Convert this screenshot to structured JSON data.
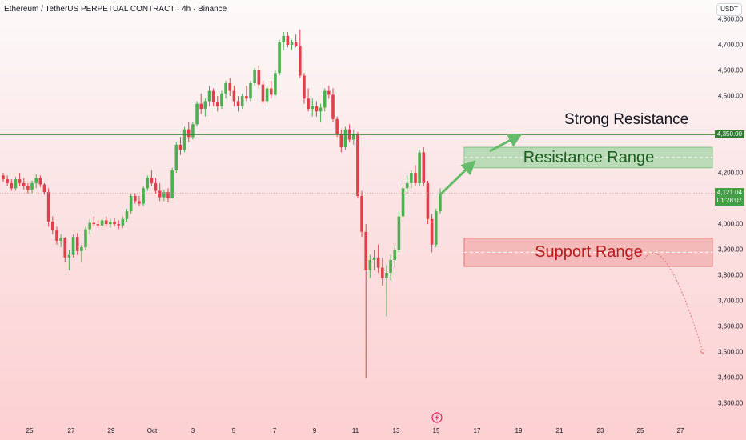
{
  "header": {
    "symbol_title": "Ethereum / TetherUS PERPETUAL CONTRACT · 4h · Binance",
    "currency_button": "USDT"
  },
  "price_tags": {
    "resistance_level": "4,350.00",
    "last_price": "4,121.04",
    "countdown": "01:28:07"
  },
  "annotations": {
    "strong_resistance": "Strong Resistance",
    "resistance_range": "Resistance Range",
    "support_range": "Support Range"
  },
  "icons": {
    "flash": "lightning-bolt-icon"
  },
  "colors": {
    "up_candle": "#4caf50",
    "down_candle": "#e0404a",
    "resistance_line": "#2e7d32",
    "resistance_zone": "#a5d6a7",
    "support_zone": "#ef9a9a",
    "arrow": "#66bb6a",
    "curve": "#e57373",
    "last_price_tag": "#43a047"
  },
  "chart_data": {
    "type": "candlestick",
    "title": "Ethereum / TetherUS PERPETUAL CONTRACT · 4h · Binance",
    "ylim": [
      3250,
      4830
    ],
    "y_ticks": [
      "4,800.00",
      "4,700.00",
      "4,600.00",
      "4,500.00",
      "4,400.00",
      "4,300.00",
      "4,200.00",
      "4,100.00",
      "4,000.00",
      "3,900.00",
      "3,800.00",
      "3,700.00",
      "3,600.00",
      "3,500.00",
      "3,400.00",
      "3,300.00"
    ],
    "x_ticks": [
      "25",
      "27",
      "29",
      "Oct",
      "3",
      "5",
      "7",
      "9",
      "11",
      "13",
      "15",
      "17",
      "19",
      "21",
      "23",
      "25",
      "27"
    ],
    "horizontal_line": 4350,
    "resistance_range": [
      4220,
      4300
    ],
    "support_range": [
      3835,
      3945
    ],
    "last_price": 4121.04,
    "candles": [
      [
        4190,
        4200,
        4165,
        4175
      ],
      [
        4175,
        4190,
        4150,
        4160
      ],
      [
        4160,
        4175,
        4130,
        4140
      ],
      [
        4140,
        4185,
        4130,
        4175
      ],
      [
        4175,
        4200,
        4150,
        4160
      ],
      [
        4160,
        4180,
        4135,
        4150
      ],
      [
        4150,
        4160,
        4120,
        4135
      ],
      [
        4135,
        4170,
        4120,
        4160
      ],
      [
        4160,
        4195,
        4140,
        4180
      ],
      [
        4180,
        4190,
        4145,
        4155
      ],
      [
        4155,
        4160,
        4115,
        4125
      ],
      [
        4125,
        4140,
        3990,
        4010
      ],
      [
        4010,
        4030,
        3960,
        3975
      ],
      [
        3975,
        3990,
        3920,
        3935
      ],
      [
        3935,
        3960,
        3910,
        3945
      ],
      [
        3945,
        3950,
        3850,
        3870
      ],
      [
        3870,
        3900,
        3820,
        3880
      ],
      [
        3880,
        3960,
        3870,
        3950
      ],
      [
        3950,
        3965,
        3880,
        3895
      ],
      [
        3895,
        3920,
        3850,
        3910
      ],
      [
        3910,
        3990,
        3900,
        3980
      ],
      [
        3980,
        4020,
        3960,
        4005
      ],
      [
        4005,
        4030,
        3990,
        4000
      ],
      [
        4000,
        4015,
        3985,
        3995
      ],
      [
        3995,
        4020,
        3985,
        4015
      ],
      [
        4015,
        4030,
        3990,
        4000
      ],
      [
        4000,
        4020,
        3985,
        4010
      ],
      [
        4010,
        4025,
        3990,
        4000
      ],
      [
        4000,
        4015,
        3980,
        3995
      ],
      [
        3995,
        4030,
        3985,
        4020
      ],
      [
        4020,
        4060,
        4010,
        4050
      ],
      [
        4050,
        4120,
        4040,
        4110
      ],
      [
        4110,
        4120,
        4080,
        4090
      ],
      [
        4090,
        4110,
        4070,
        4080
      ],
      [
        4080,
        4150,
        4070,
        4140
      ],
      [
        4140,
        4190,
        4130,
        4180
      ],
      [
        4180,
        4210,
        4150,
        4160
      ],
      [
        4160,
        4180,
        4120,
        4130
      ],
      [
        4130,
        4160,
        4090,
        4105
      ],
      [
        4105,
        4135,
        4090,
        4125
      ],
      [
        4125,
        4140,
        4085,
        4100
      ],
      [
        4100,
        4220,
        4100,
        4210
      ],
      [
        4210,
        4320,
        4200,
        4310
      ],
      [
        4310,
        4340,
        4270,
        4290
      ],
      [
        4290,
        4380,
        4280,
        4370
      ],
      [
        4370,
        4400,
        4320,
        4340
      ],
      [
        4340,
        4400,
        4330,
        4390
      ],
      [
        4390,
        4480,
        4380,
        4470
      ],
      [
        4470,
        4510,
        4430,
        4450
      ],
      [
        4450,
        4490,
        4420,
        4480
      ],
      [
        4480,
        4540,
        4460,
        4520
      ],
      [
        4520,
        4530,
        4460,
        4475
      ],
      [
        4475,
        4500,
        4440,
        4460
      ],
      [
        4460,
        4520,
        4450,
        4510
      ],
      [
        4510,
        4560,
        4490,
        4550
      ],
      [
        4550,
        4570,
        4500,
        4520
      ],
      [
        4520,
        4540,
        4460,
        4480
      ],
      [
        4480,
        4500,
        4440,
        4460
      ],
      [
        4460,
        4510,
        4450,
        4500
      ],
      [
        4500,
        4540,
        4480,
        4490
      ],
      [
        4490,
        4560,
        4480,
        4550
      ],
      [
        4550,
        4610,
        4540,
        4600
      ],
      [
        4600,
        4620,
        4530,
        4545
      ],
      [
        4545,
        4560,
        4470,
        4480
      ],
      [
        4480,
        4540,
        4470,
        4530
      ],
      [
        4530,
        4560,
        4490,
        4505
      ],
      [
        4505,
        4600,
        4500,
        4590
      ],
      [
        4590,
        4720,
        4580,
        4710
      ],
      [
        4710,
        4750,
        4680,
        4735
      ],
      [
        4735,
        4750,
        4690,
        4700
      ],
      [
        4700,
        4720,
        4680,
        4710
      ],
      [
        4710,
        4740,
        4690,
        4695
      ],
      [
        4695,
        4760,
        4570,
        4580
      ],
      [
        4580,
        4590,
        4470,
        4490
      ],
      [
        4490,
        4530,
        4440,
        4450
      ],
      [
        4450,
        4490,
        4420,
        4460
      ],
      [
        4460,
        4480,
        4420,
        4440
      ],
      [
        4440,
        4470,
        4400,
        4455
      ],
      [
        4455,
        4530,
        4440,
        4520
      ],
      [
        4520,
        4540,
        4490,
        4505
      ],
      [
        4505,
        4530,
        4400,
        4410
      ],
      [
        4410,
        4420,
        4340,
        4350
      ],
      [
        4350,
        4370,
        4280,
        4300
      ],
      [
        4300,
        4380,
        4290,
        4370
      ],
      [
        4370,
        4390,
        4320,
        4330
      ],
      [
        4330,
        4370,
        4310,
        4350
      ],
      [
        4350,
        4360,
        4100,
        4110
      ],
      [
        4110,
        4130,
        3950,
        3970
      ],
      [
        3970,
        4000,
        3400,
        3820
      ],
      [
        3820,
        3880,
        3790,
        3860
      ],
      [
        3860,
        3900,
        3820,
        3870
      ],
      [
        3870,
        3920,
        3810,
        3830
      ],
      [
        3830,
        3870,
        3760,
        3790
      ],
      [
        3790,
        3840,
        3640,
        3810
      ],
      [
        3810,
        3880,
        3780,
        3860
      ],
      [
        3860,
        3920,
        3830,
        3900
      ],
      [
        3900,
        4050,
        3890,
        4030
      ],
      [
        4030,
        4160,
        4020,
        4140
      ],
      [
        4140,
        4190,
        4120,
        4160
      ],
      [
        4160,
        4210,
        4140,
        4200
      ],
      [
        4200,
        4230,
        4150,
        4160
      ],
      [
        4160,
        4290,
        4150,
        4280
      ],
      [
        4280,
        4300,
        4150,
        4160
      ],
      [
        4160,
        4170,
        4000,
        4020
      ],
      [
        4020,
        4040,
        3890,
        3920
      ],
      [
        3920,
        4060,
        3910,
        4050
      ],
      [
        4050,
        4140,
        4040,
        4120
      ]
    ]
  }
}
